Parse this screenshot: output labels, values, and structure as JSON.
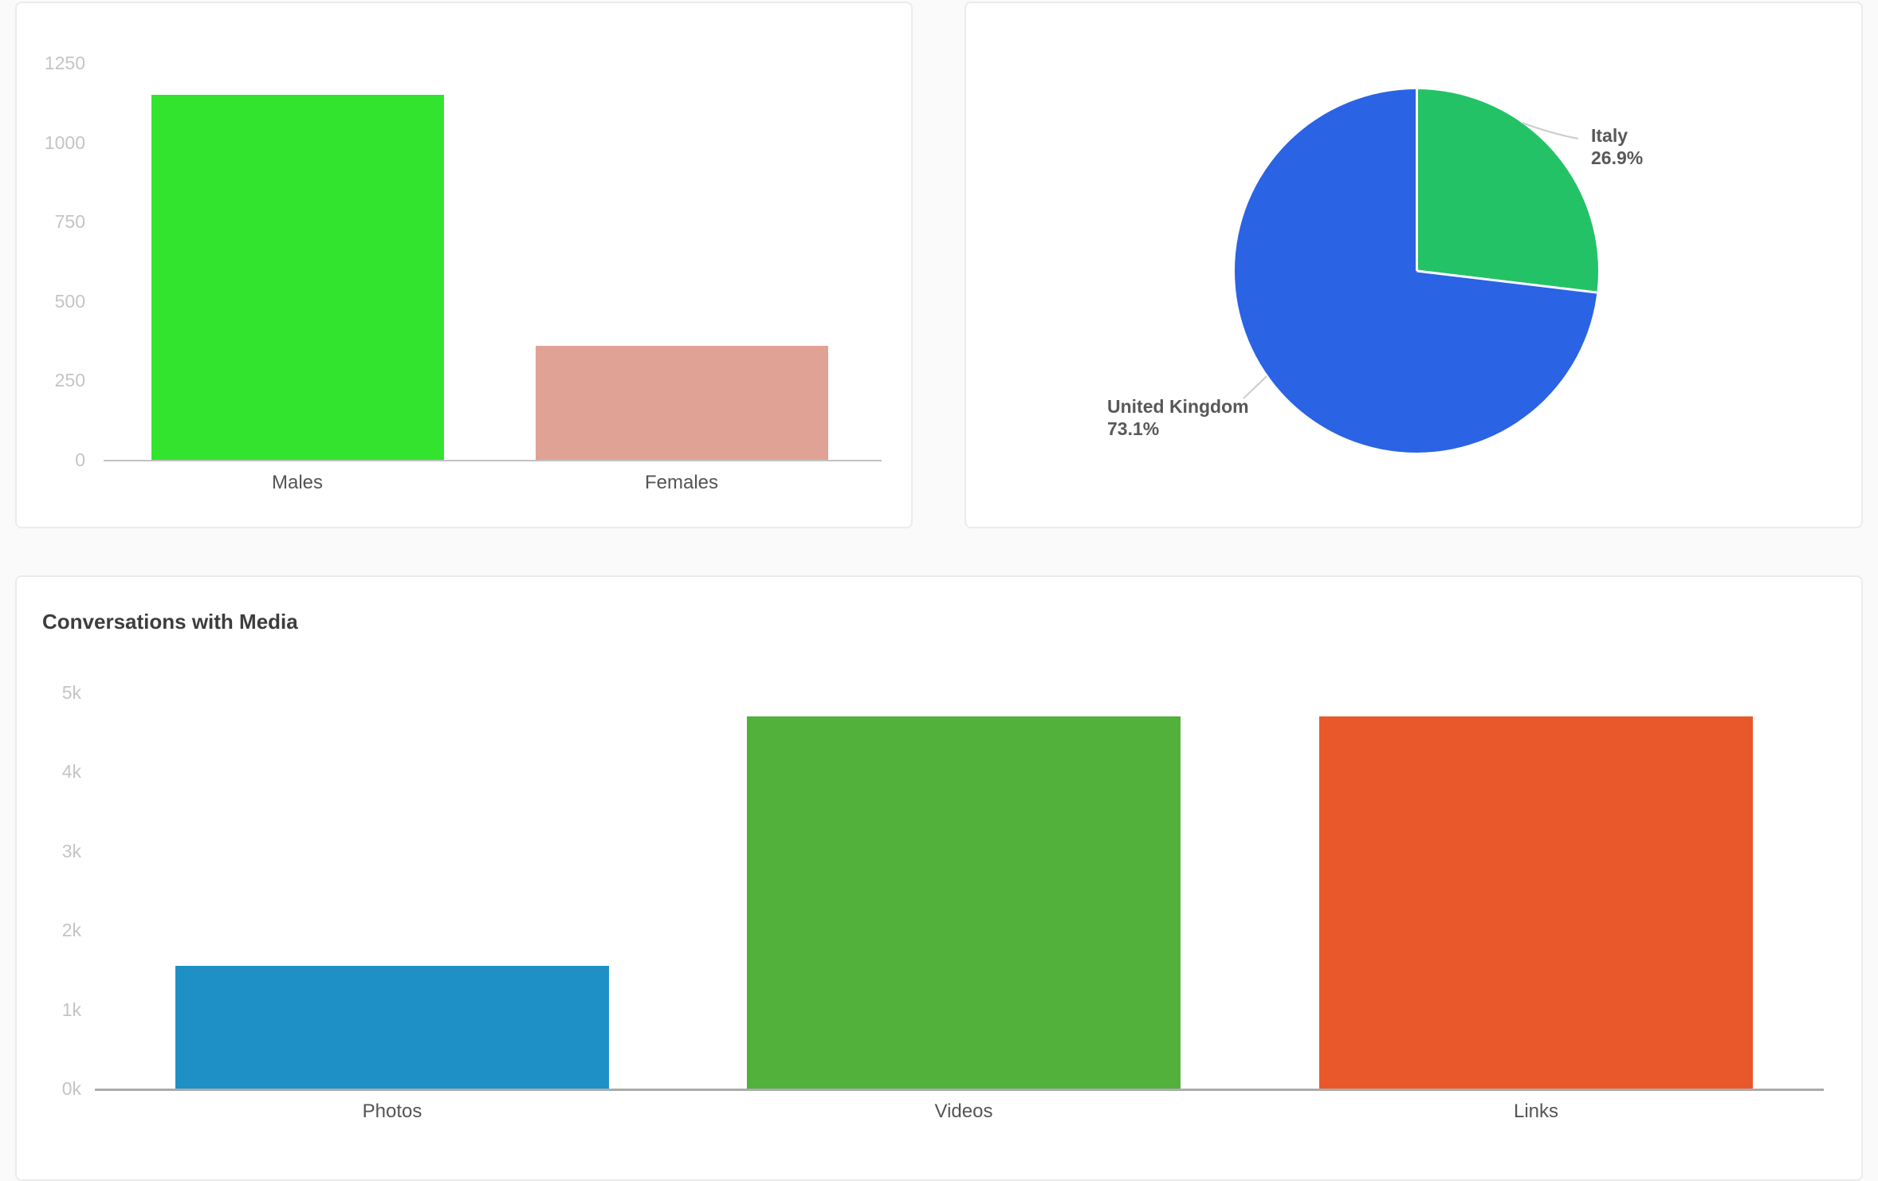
{
  "page": {
    "background_color": "#fafafa",
    "card_background": "#ffffff",
    "card_border_color": "#ebebeb"
  },
  "cards": {
    "gender": {
      "title": ""
    },
    "countries": {
      "title": ""
    },
    "media": {
      "title": "Conversations with Media"
    }
  },
  "chart_data": [
    {
      "id": "gender-bar-chart",
      "type": "bar",
      "title": "",
      "categories": [
        "Males",
        "Females"
      ],
      "values": [
        1150,
        360
      ],
      "bar_colors": [
        "#33e42e",
        "#e0a294"
      ],
      "ytick_labels": [
        "0",
        "250",
        "500",
        "750",
        "1000",
        "1250"
      ],
      "ylim": [
        0,
        1250
      ],
      "xlabel": "",
      "ylabel": "",
      "grid": false,
      "legend_position": "none",
      "tick_color": "#c4c4c4",
      "category_label_color": "#545454"
    },
    {
      "id": "country-pie-chart",
      "type": "pie",
      "title": "",
      "start_angle_deg": 0,
      "direction": "clockwise",
      "slices": [
        {
          "label": "Italy",
          "value": 26.9,
          "pct_label": "26.9%",
          "color": "#24c266"
        },
        {
          "label": "United Kingdom",
          "value": 73.1,
          "pct_label": "73.1%",
          "color": "#2a63e4"
        }
      ],
      "slice_separator_color": "#ffffff",
      "label_color": "#58585a",
      "leader_line_color": "#cccccc",
      "legend_position": "outside-labels"
    },
    {
      "id": "media-bar-chart",
      "type": "bar",
      "title": "Conversations with Media",
      "categories": [
        "Photos",
        "Videos",
        "Links"
      ],
      "values": [
        1550,
        4700,
        4700
      ],
      "bar_colors": [
        "#1e90c5",
        "#51b13a",
        "#e8582a"
      ],
      "ytick_labels": [
        "0k",
        "1k",
        "2k",
        "3k",
        "4k",
        "5k"
      ],
      "ylim": [
        0,
        5000
      ],
      "xlabel": "",
      "ylabel": "",
      "grid": false,
      "legend_position": "none",
      "tick_color": "#c4c4c4",
      "category_label_color": "#545454"
    }
  ]
}
